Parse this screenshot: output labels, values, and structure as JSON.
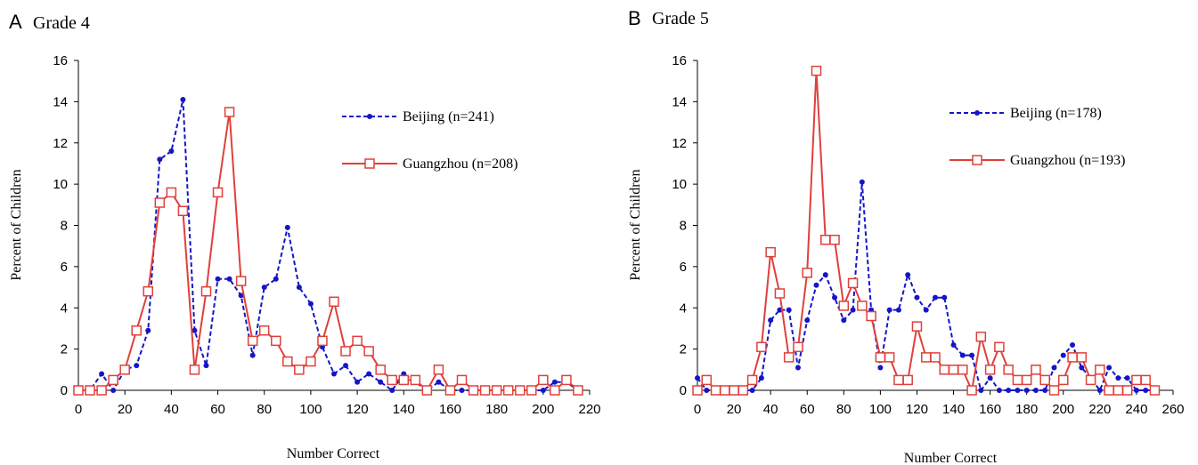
{
  "colors": {
    "beijing": "#1515c8",
    "guangzhou": "#e0403a",
    "axis": "#000000"
  },
  "chart_data": [
    {
      "type": "line",
      "panel_letter": "A",
      "title": "Grade 4",
      "xlabel": "Number Correct",
      "ylabel": "Percent of Children",
      "xlim": [
        0,
        220
      ],
      "ylim": [
        0,
        16
      ],
      "x_ticks": [
        0,
        20,
        40,
        60,
        80,
        100,
        120,
        140,
        160,
        180,
        200,
        220
      ],
      "y_ticks": [
        0,
        2,
        4,
        6,
        8,
        10,
        12,
        14,
        16
      ],
      "grid": false,
      "legend_position": "top-right",
      "x": [
        0,
        5,
        10,
        15,
        20,
        25,
        30,
        35,
        40,
        45,
        50,
        55,
        60,
        65,
        70,
        75,
        80,
        85,
        90,
        95,
        100,
        105,
        110,
        115,
        120,
        125,
        130,
        135,
        140,
        145,
        150,
        155,
        160,
        165,
        170,
        175,
        180,
        185,
        190,
        195,
        200,
        205,
        210,
        215
      ],
      "series": [
        {
          "name": "Beijing (n=241)",
          "style": "dashed-dot",
          "values": [
            0,
            0,
            0.8,
            0,
            1,
            1.2,
            2.9,
            11.2,
            11.6,
            14.1,
            2.9,
            1.2,
            5.4,
            5.4,
            4.6,
            1.7,
            5,
            5.4,
            7.9,
            5,
            4.2,
            2.1,
            0.8,
            1.2,
            0.4,
            0.8,
            0.4,
            0,
            0.8,
            0.4,
            0,
            0.4,
            0,
            0,
            0,
            0,
            0,
            0,
            0,
            0,
            0,
            0.4,
            0.4,
            0
          ]
        },
        {
          "name": "Guangzhou (n=208)",
          "style": "solid-square",
          "values": [
            0,
            0,
            0,
            0.5,
            1,
            2.9,
            4.8,
            9.1,
            9.6,
            8.7,
            1,
            4.8,
            9.6,
            13.5,
            5.3,
            2.4,
            2.9,
            2.4,
            1.4,
            1,
            1.4,
            2.4,
            4.3,
            1.9,
            2.4,
            1.9,
            1,
            0.5,
            0.5,
            0.5,
            0,
            1,
            0,
            0.5,
            0,
            0,
            0,
            0,
            0,
            0,
            0.5,
            0,
            0.5,
            0
          ]
        }
      ]
    },
    {
      "type": "line",
      "panel_letter": "B",
      "title": "Grade 5",
      "xlabel": "Number Correct",
      "ylabel": "Percent of Children",
      "xlim": [
        0,
        260
      ],
      "ylim": [
        0,
        16
      ],
      "x_ticks": [
        0,
        20,
        40,
        60,
        80,
        100,
        120,
        140,
        160,
        180,
        200,
        220,
        240,
        260
      ],
      "y_ticks": [
        0,
        2,
        4,
        6,
        8,
        10,
        12,
        14,
        16
      ],
      "grid": false,
      "legend_position": "top-right",
      "x": [
        0,
        5,
        10,
        15,
        20,
        25,
        30,
        35,
        40,
        45,
        50,
        55,
        60,
        65,
        70,
        75,
        80,
        85,
        90,
        95,
        100,
        105,
        110,
        115,
        120,
        125,
        130,
        135,
        140,
        145,
        150,
        155,
        160,
        165,
        170,
        175,
        180,
        185,
        190,
        195,
        200,
        205,
        210,
        215,
        220,
        225,
        230,
        235,
        240,
        245,
        250
      ],
      "series": [
        {
          "name": "Beijing (n=178)",
          "style": "dashed-dot",
          "values": [
            0.6,
            0,
            0,
            0,
            0,
            0,
            0,
            0.6,
            3.4,
            3.9,
            3.9,
            1.1,
            3.4,
            5.1,
            5.6,
            4.5,
            3.4,
            3.9,
            10.1,
            3.9,
            1.1,
            3.9,
            3.9,
            5.6,
            4.5,
            3.9,
            4.5,
            4.5,
            2.2,
            1.7,
            1.7,
            0,
            0.6,
            0,
            0,
            0,
            0,
            0,
            0,
            1.1,
            1.7,
            2.2,
            1.1,
            0.6,
            0,
            1.1,
            0.6,
            0.6,
            0,
            0,
            0
          ]
        },
        {
          "name": "Guangzhou (n=193)",
          "style": "solid-square",
          "values": [
            0,
            0.5,
            0,
            0,
            0,
            0,
            0.5,
            2.1,
            6.7,
            4.7,
            1.6,
            2.1,
            5.7,
            15.5,
            7.3,
            7.3,
            4.1,
            5.2,
            4.1,
            3.6,
            1.6,
            1.6,
            0.5,
            0.5,
            3.1,
            1.6,
            1.6,
            1,
            1,
            1,
            0,
            2.6,
            1,
            2.1,
            1,
            0.5,
            0.5,
            1,
            0.5,
            0,
            0.5,
            1.6,
            1.6,
            0.5,
            1,
            0,
            0,
            0,
            0.5,
            0.5,
            0
          ]
        }
      ]
    }
  ]
}
